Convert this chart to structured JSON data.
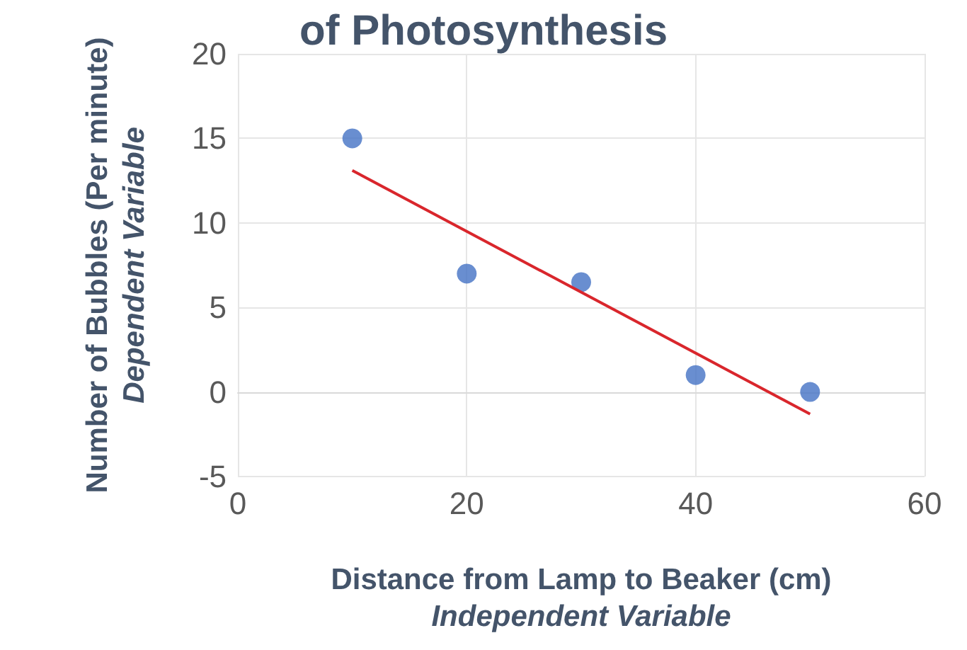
{
  "chart_data": {
    "type": "scatter",
    "title": "of Photosynthesis",
    "xlabel": "Distance from Lamp to Beaker (cm)\nIndependent Variable",
    "ylabel": "Number of Bubbles (Per minute)\nDependent Variable",
    "series": [
      {
        "marker": "circle",
        "color": "#4472c4",
        "x": [
          10,
          20,
          30,
          40,
          50
        ],
        "values": [
          15,
          7,
          6.5,
          1,
          0
        ]
      },
      {
        "type": "line",
        "color": "#d9262c",
        "x": [
          10,
          50
        ],
        "values": [
          13.1,
          -1.3
        ]
      }
    ],
    "xlim": [
      0,
      60
    ],
    "xticks": [
      0,
      20,
      40,
      60
    ],
    "ylim": [
      -5,
      20
    ],
    "yticks": [
      -5,
      0,
      5,
      10,
      15,
      20
    ],
    "grid": true
  }
}
